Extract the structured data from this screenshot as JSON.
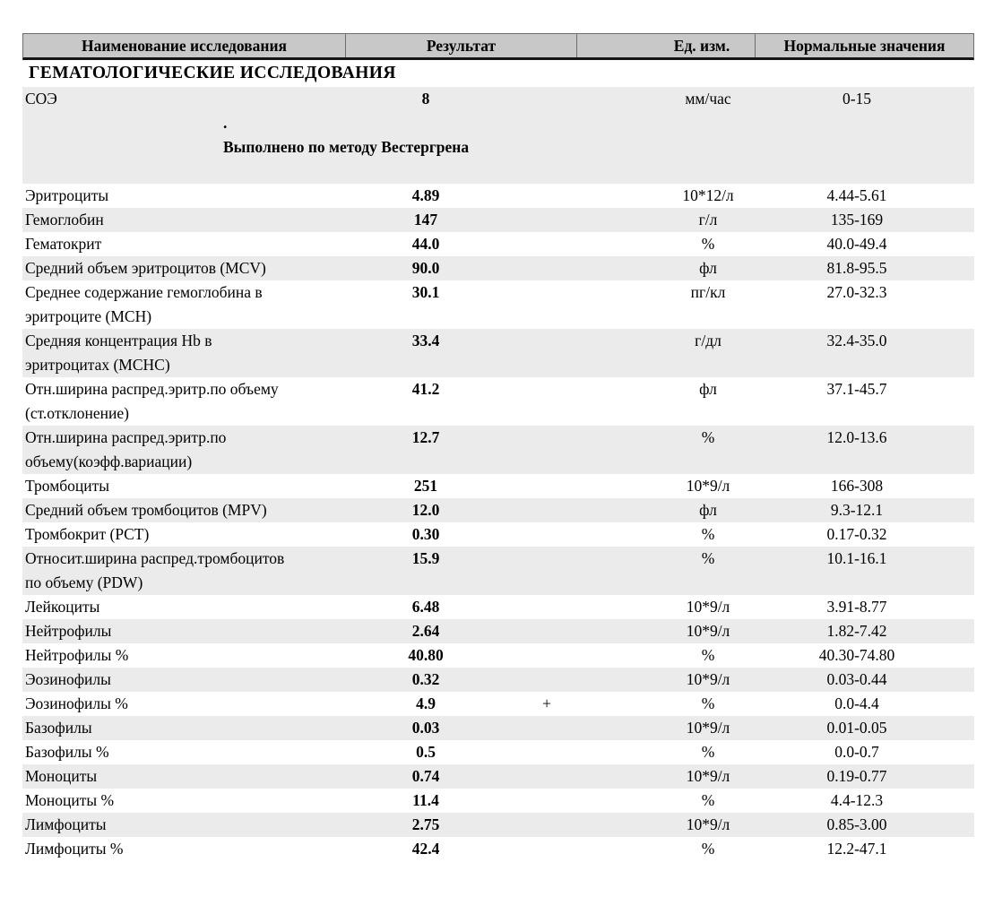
{
  "table": {
    "header": {
      "name": "Наименование исследования",
      "result": "Результат",
      "units": "Ед. изм.",
      "normal": "Нормальные значения"
    }
  },
  "section_title": "ГЕМАТОЛОГИЧЕСКИЕ ИССЛЕДОВАНИЯ",
  "soe": {
    "name": "СОЭ",
    "result": "8",
    "flag": "",
    "units": "мм/час",
    "normal": "0-15",
    "dot": ".",
    "method_note": "Выполнено по методу Вестергрена"
  },
  "rows": [
    {
      "name": "Эритроциты",
      "result": "4.89",
      "flag": "",
      "units": "10*12/л",
      "normal": "4.44-5.61"
    },
    {
      "name": "Гемоглобин",
      "result": "147",
      "flag": "",
      "units": "г/л",
      "normal": "135-169"
    },
    {
      "name": "Гематокрит",
      "result": "44.0",
      "flag": "",
      "units": "%",
      "normal": "40.0-49.4"
    },
    {
      "name": "Средний объем эритроцитов (MCV)",
      "result": "90.0",
      "flag": "",
      "units": "фл",
      "normal": "81.8-95.5"
    },
    {
      "name": "Среднее содержание гемоглобина в\nэритроците (MCH)",
      "result": "30.1",
      "flag": "",
      "units": "пг/кл",
      "normal": "27.0-32.3"
    },
    {
      "name": "Средняя концентрация Hb в\nэритроцитах (MCHC)",
      "result": "33.4",
      "flag": "",
      "units": "г/дл",
      "normal": "32.4-35.0"
    },
    {
      "name": "Отн.ширина распред.эритр.по объему\n(ст.отклонение)",
      "result": "41.2",
      "flag": "",
      "units": "фл",
      "normal": "37.1-45.7"
    },
    {
      "name": "Отн.ширина распред.эритр.по\nобъему(коэфф.вариации)",
      "result": "12.7",
      "flag": "",
      "units": "%",
      "normal": "12.0-13.6"
    },
    {
      "name": "Тромбоциты",
      "result": "251",
      "flag": "",
      "units": "10*9/л",
      "normal": "166-308"
    },
    {
      "name": "Средний объем тромбоцитов (MPV)",
      "result": "12.0",
      "flag": "",
      "units": "фл",
      "normal": "9.3-12.1"
    },
    {
      "name": "Тромбокрит (PCT)",
      "result": "0.30",
      "flag": "",
      "units": "%",
      "normal": "0.17-0.32"
    },
    {
      "name": "Относит.ширина распред.тромбоцитов\nпо объему (PDW)",
      "result": "15.9",
      "flag": "",
      "units": "%",
      "normal": "10.1-16.1"
    },
    {
      "name": "Лейкоциты",
      "result": "6.48",
      "flag": "",
      "units": "10*9/л",
      "normal": "3.91-8.77"
    },
    {
      "name": "Нейтрофилы",
      "result": "2.64",
      "flag": "",
      "units": "10*9/л",
      "normal": "1.82-7.42"
    },
    {
      "name": "Нейтрофилы %",
      "result": "40.80",
      "flag": "",
      "units": "%",
      "normal": "40.30-74.80"
    },
    {
      "name": "Эозинофилы",
      "result": "0.32",
      "flag": "",
      "units": "10*9/л",
      "normal": "0.03-0.44"
    },
    {
      "name": "Эозинофилы %",
      "result": "4.9",
      "flag": "+",
      "units": "%",
      "normal": "0.0-4.4"
    },
    {
      "name": "Базофилы",
      "result": "0.03",
      "flag": "",
      "units": "10*9/л",
      "normal": "0.01-0.05"
    },
    {
      "name": "Базофилы %",
      "result": "0.5",
      "flag": "",
      "units": "%",
      "normal": "0.0-0.7"
    },
    {
      "name": "Моноциты",
      "result": "0.74",
      "flag": "",
      "units": "10*9/л",
      "normal": "0.19-0.77"
    },
    {
      "name": "Моноциты %",
      "result": "11.4",
      "flag": "",
      "units": "%",
      "normal": "4.4-12.3"
    },
    {
      "name": "Лимфоциты",
      "result": "2.75",
      "flag": "",
      "units": "10*9/л",
      "normal": "0.85-3.00"
    },
    {
      "name": "Лимфоциты %",
      "result": "42.4",
      "flag": "",
      "units": "%",
      "normal": "12.2-47.1"
    }
  ],
  "colors": {
    "header_bg": "#c8c8c8",
    "header_border": "#6e6e6e",
    "header_bottom_border": "#151515",
    "row_stripe": "#ebebeb",
    "text": "#000000"
  }
}
